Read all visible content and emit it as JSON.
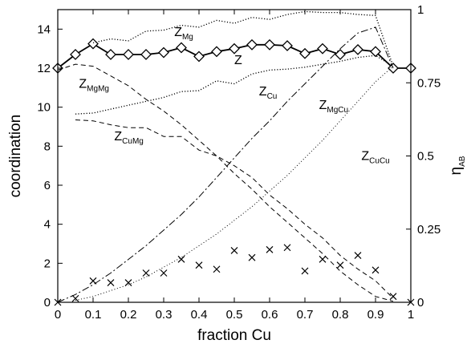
{
  "chart_data": {
    "type": "line",
    "xlabel": "fraction Cu",
    "ylabel_left": "coordination",
    "ylabel_right": {
      "base": "η",
      "sub": "AB"
    },
    "xlim": [
      0,
      1
    ],
    "ylim_left": [
      0,
      15
    ],
    "ylim_right": [
      0,
      1
    ],
    "x_ticks": [
      "0",
      "0.1",
      "0.2",
      "0.3",
      "0.4",
      "0.5",
      "0.6",
      "0.7",
      "0.8",
      "0.9",
      "1"
    ],
    "y_left_ticks": [
      "0",
      "2",
      "4",
      "6",
      "8",
      "10",
      "12",
      "14"
    ],
    "y_right_ticks": [
      "0",
      "0.25",
      "0.5",
      "0.75",
      "1"
    ],
    "grid": false,
    "annotations": [
      {
        "base": "Z",
        "sub": "Mg",
        "x": 0.33,
        "y": 13.65
      },
      {
        "base": "Z",
        "sub": "",
        "x": 0.5,
        "y": 12.2
      },
      {
        "base": "Z",
        "sub": "MgMg",
        "x": 0.06,
        "y": 11.0
      },
      {
        "base": "Z",
        "sub": "Cu",
        "x": 0.57,
        "y": 10.6
      },
      {
        "base": "Z",
        "sub": "MgCu",
        "x": 0.74,
        "y": 9.9
      },
      {
        "base": "Z",
        "sub": "CuMg",
        "x": 0.16,
        "y": 8.3
      },
      {
        "base": "Z",
        "sub": "CuCu",
        "x": 0.86,
        "y": 7.3
      }
    ],
    "series": [
      {
        "axis": "left",
        "style": "solid-diamond",
        "x": [
          0,
          0.05,
          0.1,
          0.15,
          0.2,
          0.25,
          0.3,
          0.35,
          0.4,
          0.45,
          0.5,
          0.55,
          0.6,
          0.65,
          0.7,
          0.75,
          0.8,
          0.85,
          0.9,
          0.95,
          1
        ],
        "values": [
          12.0,
          12.7,
          13.25,
          12.7,
          12.7,
          12.7,
          12.8,
          13.05,
          12.6,
          12.85,
          13.0,
          13.2,
          13.2,
          13.15,
          12.75,
          13.0,
          12.7,
          12.95,
          12.85,
          12.0,
          12.0
        ]
      },
      {
        "axis": "left",
        "style": "dotted",
        "x": [
          0.1,
          0.15,
          0.2,
          0.25,
          0.3,
          0.35,
          0.4,
          0.45,
          0.5,
          0.55,
          0.6,
          0.65,
          0.7,
          0.75,
          0.8,
          0.85,
          0.9,
          0.95
        ],
        "values": [
          13.3,
          13.5,
          13.4,
          13.9,
          13.95,
          14.2,
          14.1,
          14.45,
          14.3,
          14.6,
          14.5,
          14.75,
          14.9,
          14.85,
          14.85,
          14.75,
          14.7,
          12.1
        ]
      },
      {
        "axis": "left",
        "style": "dotted",
        "x": [
          0.05,
          0.1,
          0.15,
          0.2,
          0.25,
          0.3,
          0.35,
          0.4,
          0.45,
          0.5,
          0.55,
          0.6,
          0.65,
          0.7,
          0.75,
          0.8,
          0.85,
          0.9,
          0.95
        ],
        "values": [
          9.65,
          9.7,
          9.9,
          10.1,
          10.3,
          10.5,
          10.8,
          10.85,
          11.35,
          11.2,
          11.7,
          11.9,
          11.95,
          12.05,
          12.2,
          12.35,
          12.55,
          12.65,
          12.1
        ]
      },
      {
        "axis": "left",
        "style": "dashed",
        "x": [
          0,
          0.05,
          0.1,
          0.15,
          0.2,
          0.25,
          0.3,
          0.35,
          0.4,
          0.45,
          0.5,
          0.55,
          0.6,
          0.65,
          0.7,
          0.75,
          0.8,
          0.85,
          0.9,
          0.95
        ],
        "values": [
          11.9,
          12.2,
          12.1,
          11.6,
          11.1,
          10.4,
          9.8,
          9.1,
          8.3,
          7.5,
          6.6,
          5.8,
          4.9,
          4.1,
          3.3,
          2.5,
          1.6,
          0.9,
          0.3,
          0.05
        ]
      },
      {
        "axis": "left",
        "style": "dashed",
        "x": [
          0.05,
          0.1,
          0.15,
          0.2,
          0.25,
          0.3,
          0.35,
          0.4,
          0.45,
          0.5,
          0.55,
          0.6,
          0.65,
          0.7,
          0.75,
          0.8,
          0.85,
          0.9,
          0.95
        ],
        "values": [
          9.35,
          9.3,
          9.1,
          8.95,
          8.95,
          8.5,
          8.5,
          7.8,
          7.5,
          7.0,
          6.4,
          5.5,
          4.8,
          4.0,
          3.3,
          2.4,
          1.7,
          1.1,
          0.2
        ]
      },
      {
        "axis": "left",
        "style": "dash-dot",
        "x": [
          0,
          0.05,
          0.1,
          0.15,
          0.2,
          0.25,
          0.3,
          0.35,
          0.4,
          0.45,
          0.5,
          0.55,
          0.6,
          0.65,
          0.7,
          0.75,
          0.8,
          0.85,
          0.9,
          0.95
        ],
        "values": [
          0,
          0.4,
          0.9,
          1.5,
          2.2,
          2.9,
          3.7,
          4.5,
          5.4,
          6.4,
          7.4,
          8.4,
          9.3,
          10.3,
          11.2,
          12.1,
          13.0,
          13.8,
          14.1,
          12.0
        ]
      },
      {
        "axis": "left",
        "style": "dotted-fine",
        "x": [
          0.05,
          0.1,
          0.15,
          0.2,
          0.25,
          0.3,
          0.35,
          0.4,
          0.45,
          0.5,
          0.55,
          0.6,
          0.65,
          0.7,
          0.75,
          0.8,
          0.85,
          0.9,
          0.95
        ],
        "values": [
          0.1,
          0.3,
          0.6,
          0.9,
          1.3,
          1.8,
          2.3,
          2.9,
          3.5,
          4.2,
          4.9,
          5.7,
          6.5,
          7.4,
          8.3,
          9.3,
          10.3,
          11.3,
          12.1
        ]
      },
      {
        "axis": "right",
        "style": "cross-markers",
        "x": [
          0,
          0.05,
          0.1,
          0.15,
          0.2,
          0.25,
          0.3,
          0.35,
          0.4,
          0.45,
          0.5,
          0.55,
          0.6,
          0.65,
          0.7,
          0.75,
          0.8,
          0.85,
          0.9,
          0.95,
          1
        ],
        "values": [
          0,
          0.013,
          0.073,
          0.067,
          0.067,
          0.1,
          0.1,
          0.147,
          0.127,
          0.113,
          0.177,
          0.153,
          0.18,
          0.187,
          0.107,
          0.147,
          0.127,
          0.16,
          0.11,
          0.02,
          0
        ]
      }
    ]
  }
}
